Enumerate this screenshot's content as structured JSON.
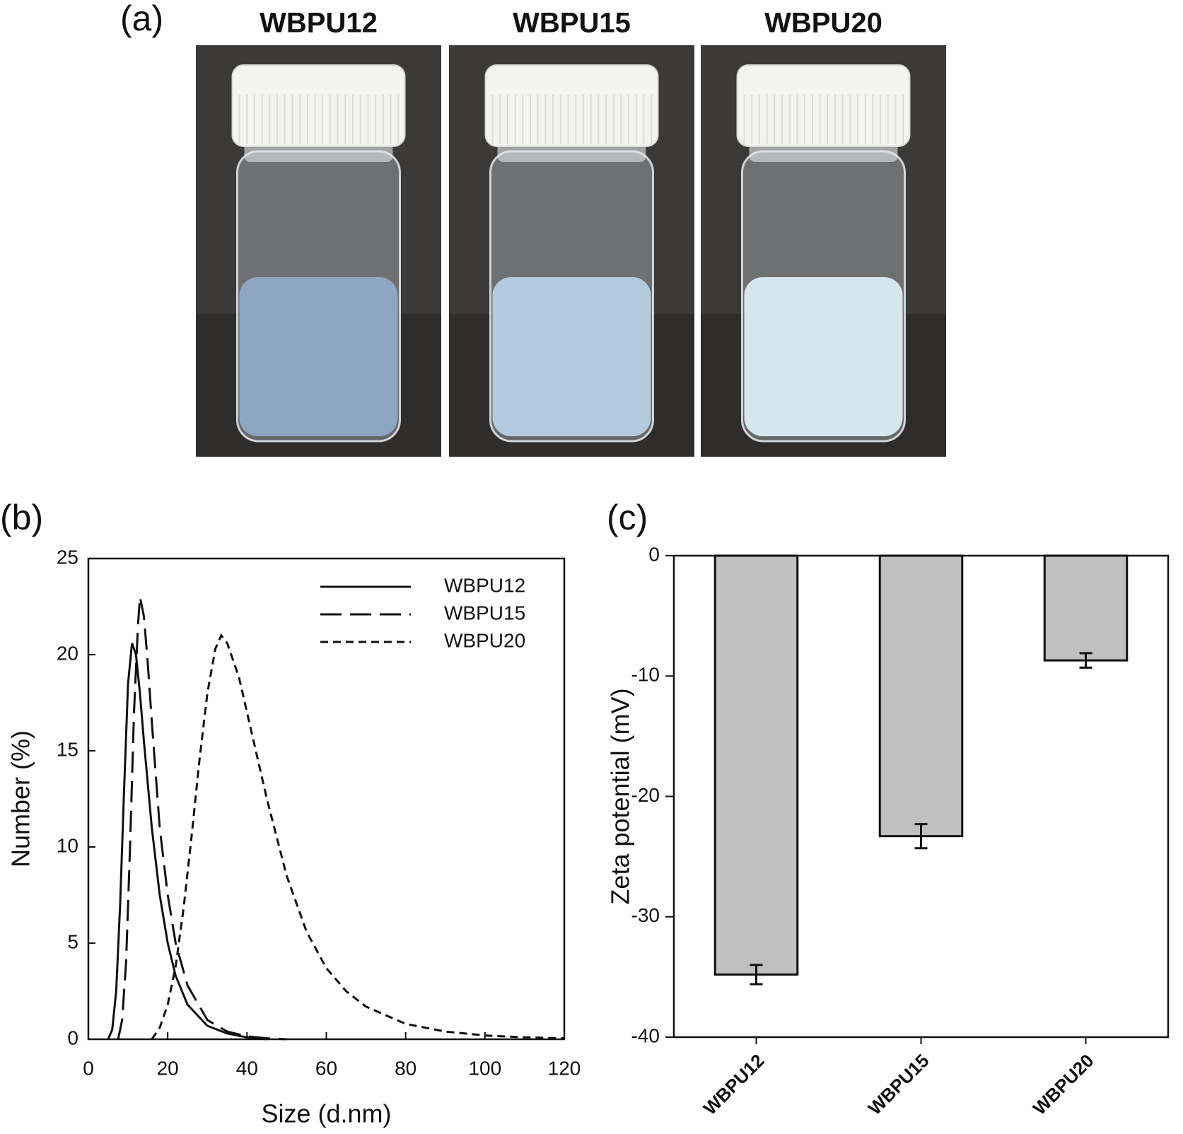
{
  "photos": {
    "label": "(a)",
    "samples": [
      "WBPU12",
      "WBPU15",
      "WBPU20"
    ]
  },
  "chart_data": [
    {
      "type": "line",
      "label": "(b)",
      "x_label": "Size (d.nm)",
      "y_label": "Number (%)",
      "xlim": [
        0,
        120
      ],
      "xticks": [
        0,
        20,
        40,
        60,
        80,
        100,
        120
      ],
      "ylim": [
        0,
        25
      ],
      "yticks": [
        0,
        5,
        10,
        15,
        20,
        25
      ],
      "grid": false,
      "legend": "upper right",
      "series": [
        {
          "name": "WBPU12",
          "color": "#111111",
          "line_style": "solid",
          "x": [
            5,
            6,
            7,
            8,
            9,
            10,
            11,
            12,
            13,
            14,
            16,
            18,
            20,
            22,
            25,
            30,
            35,
            40,
            45
          ],
          "values": [
            0,
            0.5,
            2.5,
            7,
            13,
            18.5,
            20.6,
            20,
            18,
            15.5,
            11,
            7.5,
            5,
            3.3,
            1.8,
            0.7,
            0.3,
            0.1,
            0
          ]
        },
        {
          "name": "WBPU15",
          "color": "#111111",
          "line_style": "long-dash",
          "x": [
            7.5,
            8.5,
            9.5,
            10.5,
            11.5,
            12.5,
            13,
            14,
            15,
            16,
            18,
            20,
            22,
            25,
            30,
            35,
            40,
            45,
            50
          ],
          "values": [
            0,
            1,
            4,
            10,
            17,
            21.5,
            23,
            22,
            19.5,
            16.5,
            11,
            7.5,
            5,
            2.8,
            1,
            0.4,
            0.15,
            0.05,
            0
          ]
        },
        {
          "name": "WBPU20",
          "color": "#111111",
          "line_style": "short-dash",
          "x": [
            16,
            18,
            20,
            22,
            24,
            26,
            28,
            30,
            32,
            33.5,
            35,
            38,
            40,
            45,
            50,
            55,
            60,
            65,
            70,
            80,
            90,
            100,
            110,
            120
          ],
          "values": [
            0,
            0.6,
            1.8,
            3.8,
            6.8,
            10.5,
            14.5,
            18,
            20.3,
            21,
            20.6,
            18.8,
            17,
            12.5,
            8.5,
            5.6,
            3.7,
            2.5,
            1.7,
            0.8,
            0.4,
            0.2,
            0.1,
            0.05
          ]
        }
      ]
    },
    {
      "type": "bar",
      "label": "(c)",
      "y_label": "Zeta potential (mV)",
      "categories": [
        "WBPU12",
        "WBPU15",
        "WBPU20"
      ],
      "values": [
        -34.8,
        -23.3,
        -8.7
      ],
      "errors": [
        0.8,
        1.0,
        0.6
      ],
      "color": "#c0c0c0",
      "ylim": [
        -40,
        0
      ],
      "yticks": [
        0,
        -10,
        -20,
        -30,
        -40
      ],
      "grid": false
    }
  ]
}
